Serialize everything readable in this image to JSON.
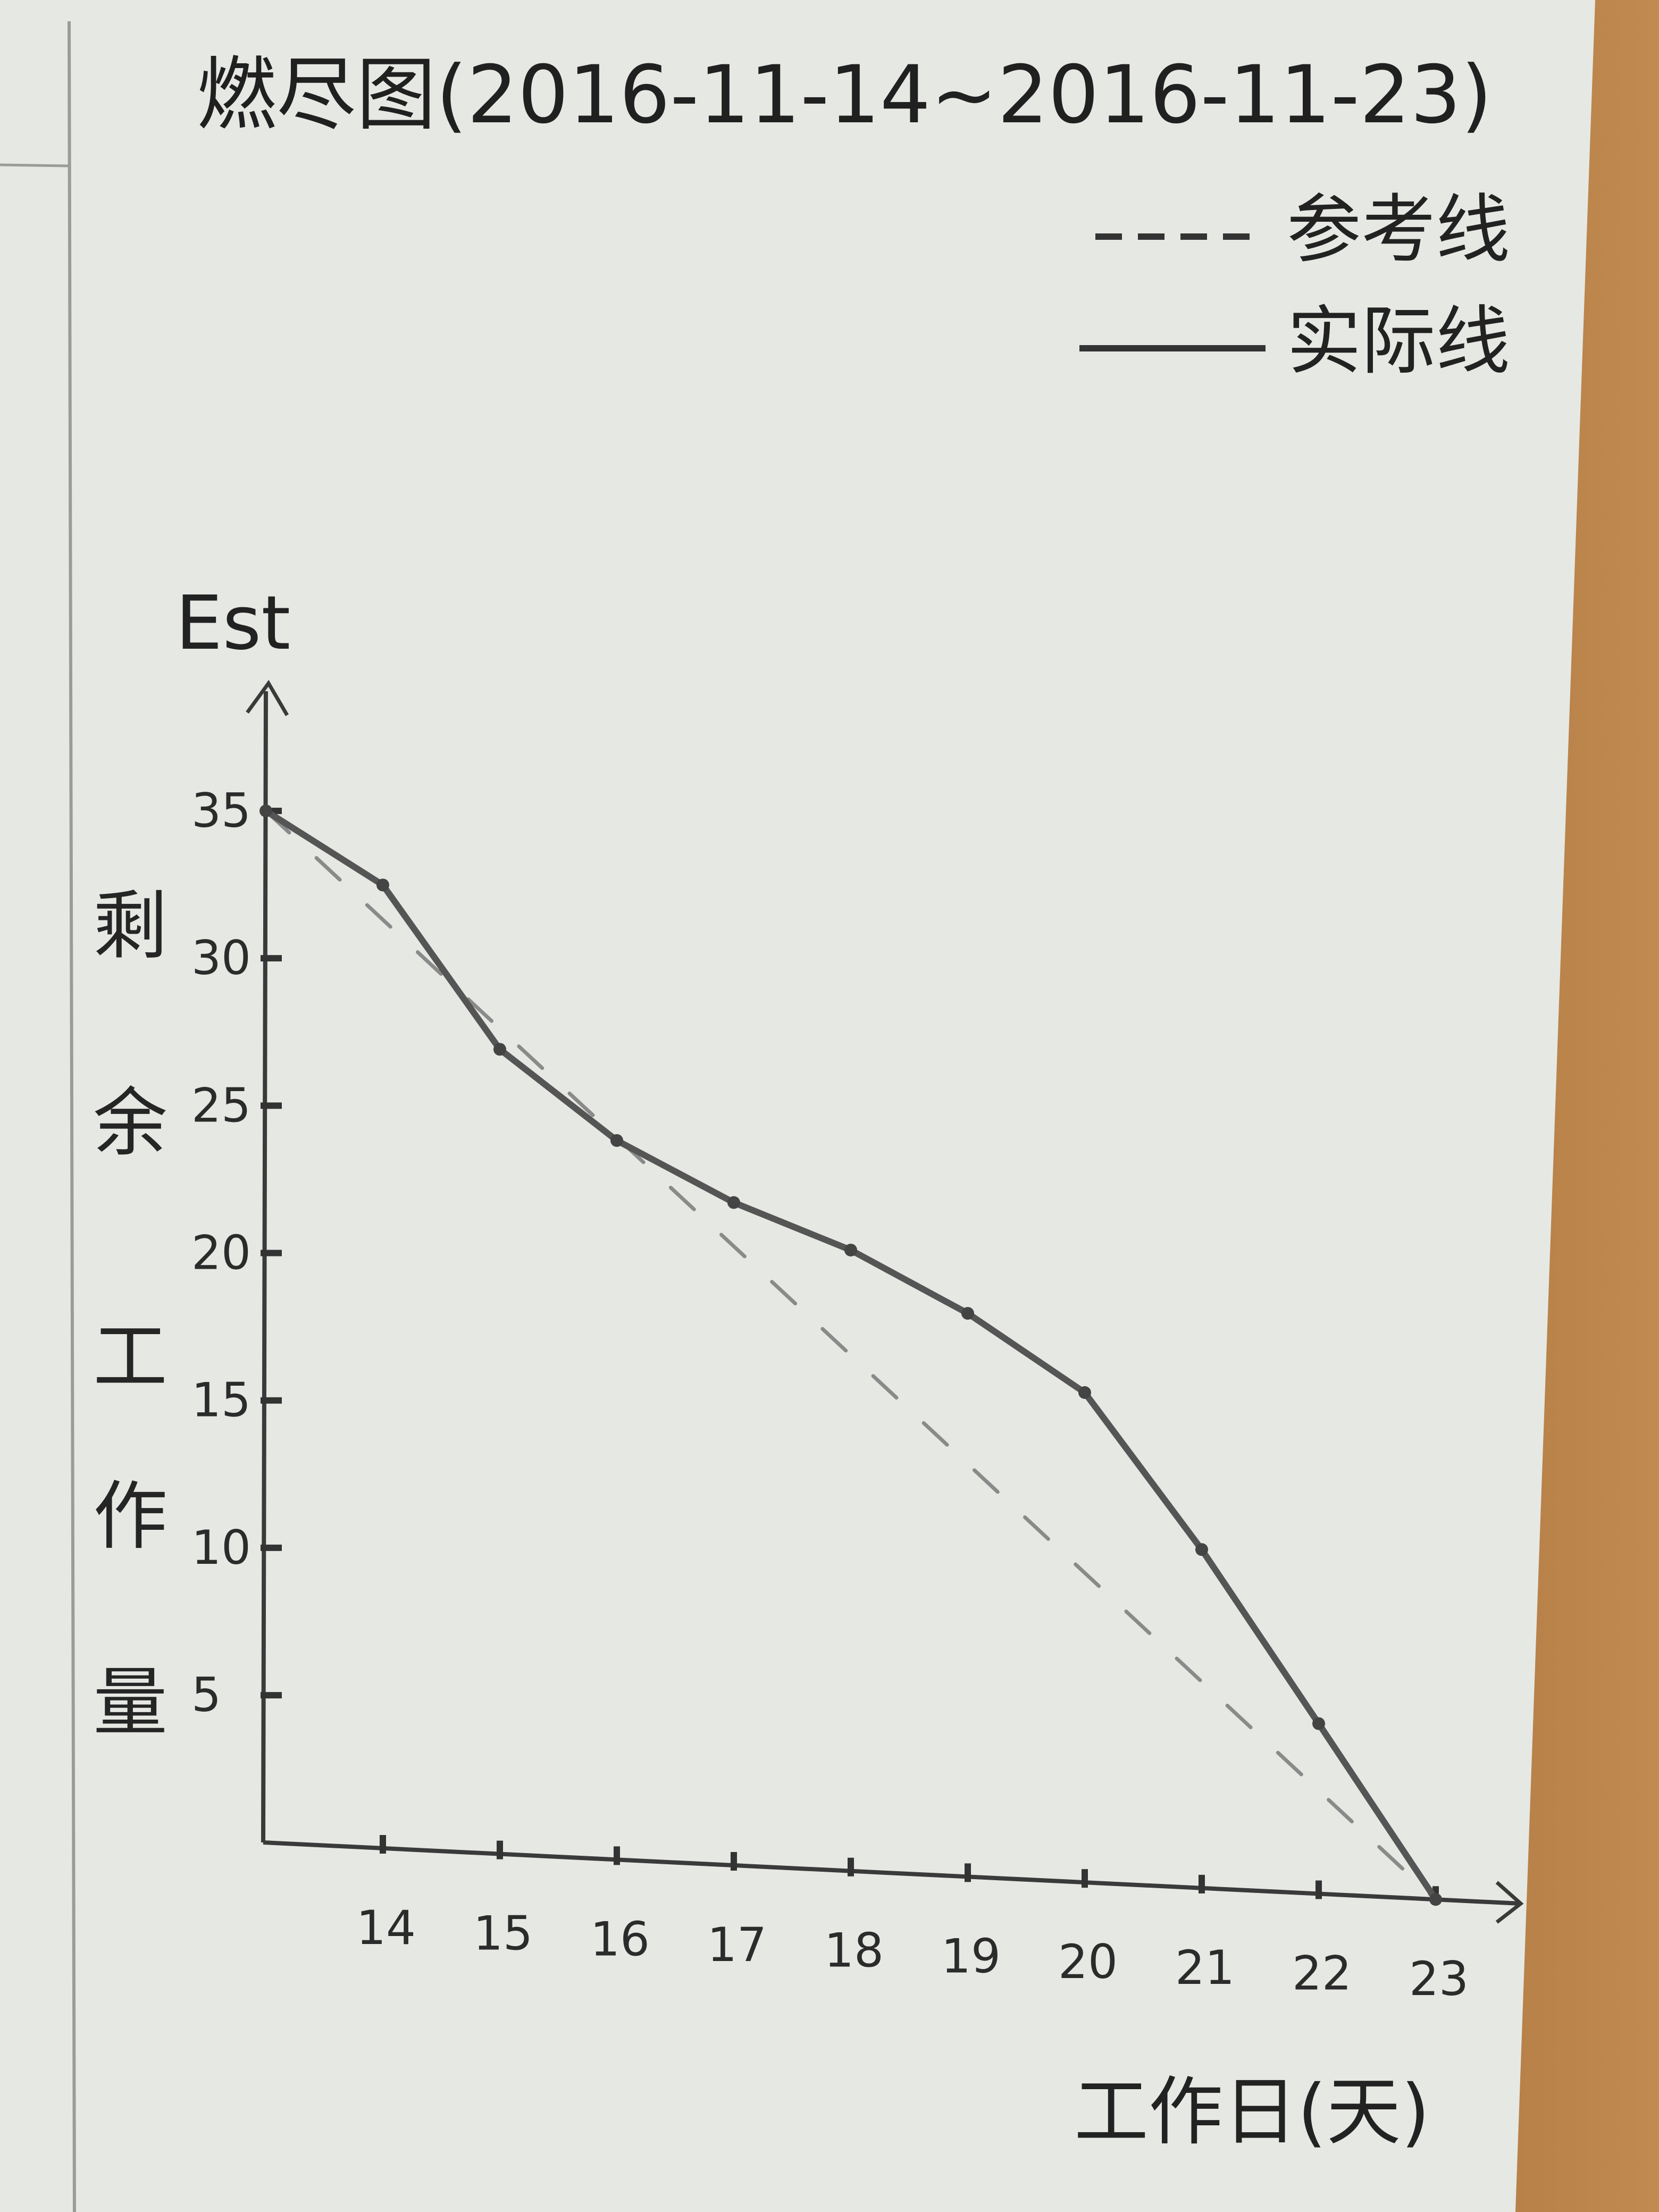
{
  "chart_data": {
    "type": "line",
    "title": "燃尽图(2016-11-14~2016-11-23)",
    "ylabel_top": "Est",
    "ylabel_side": "剩余工作量",
    "xlabel": "工作日(天)",
    "x_ticks": [
      14,
      15,
      16,
      17,
      18,
      19,
      20,
      21,
      22,
      23
    ],
    "y_ticks": [
      5,
      10,
      15,
      20,
      25,
      30,
      35
    ],
    "xlim": [
      13,
      23
    ],
    "ylim": [
      0,
      35
    ],
    "legend": {
      "placement": "top-right",
      "entries": [
        {
          "label": "参考线",
          "style": "dashed"
        },
        {
          "label": "实际线",
          "style": "solid"
        }
      ]
    },
    "series": [
      {
        "name": "参考线",
        "style": "dashed",
        "color": "#8a8a8a",
        "x": [
          13,
          23
        ],
        "y": [
          35,
          0
        ]
      },
      {
        "name": "实际线",
        "style": "solid",
        "color": "#555555",
        "x": [
          13,
          14,
          15,
          16,
          17,
          18,
          19,
          20,
          21,
          22,
          23
        ],
        "y": [
          35,
          32.5,
          27,
          24,
          22,
          20.5,
          18.5,
          16,
          11,
          5.5,
          0
        ]
      }
    ]
  }
}
